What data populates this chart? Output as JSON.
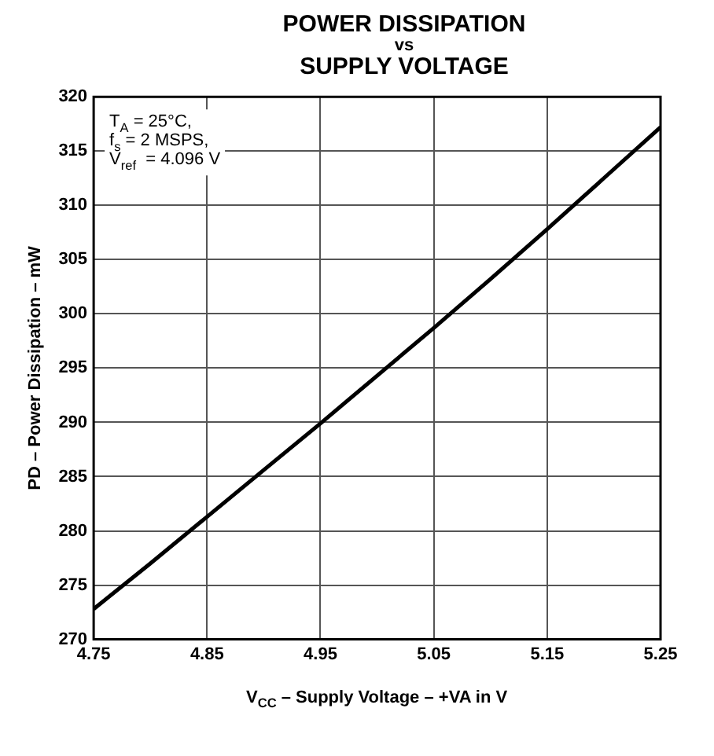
{
  "chart_data": {
    "type": "line",
    "title": "POWER DISSIPATION\nvs\nSUPPLY VOLTAGE",
    "xlabel": "V$_{CC}$ – Supply Voltage – +VA in V",
    "ylabel": "PD – Power Dissipation – mW",
    "x": [
      4.75,
      4.8,
      4.85,
      4.9,
      4.95,
      5.0,
      5.05,
      5.1,
      5.15,
      5.2,
      5.25
    ],
    "series": [
      {
        "color": "#000000",
        "values": [
          272.8,
          277.0,
          281.3,
          285.6,
          289.9,
          294.3,
          298.7,
          303.2,
          307.8,
          312.5,
          317.2
        ]
      }
    ],
    "xlim": [
      4.75,
      5.25
    ],
    "xticks": [
      4.75,
      4.85,
      4.95,
      5.05,
      5.15,
      5.25
    ],
    "ylim": [
      270,
      320
    ],
    "yticks": [
      270,
      275,
      280,
      285,
      290,
      295,
      300,
      305,
      310,
      315,
      320
    ],
    "grid": true,
    "legend": false,
    "marker": "none",
    "line_style": "solid",
    "annotations": [
      "T$_{A}$ = 25°C,\nf$_{s}$ = 2 MSPS,\nV$_{ref}$  = 4.096 V"
    ]
  }
}
